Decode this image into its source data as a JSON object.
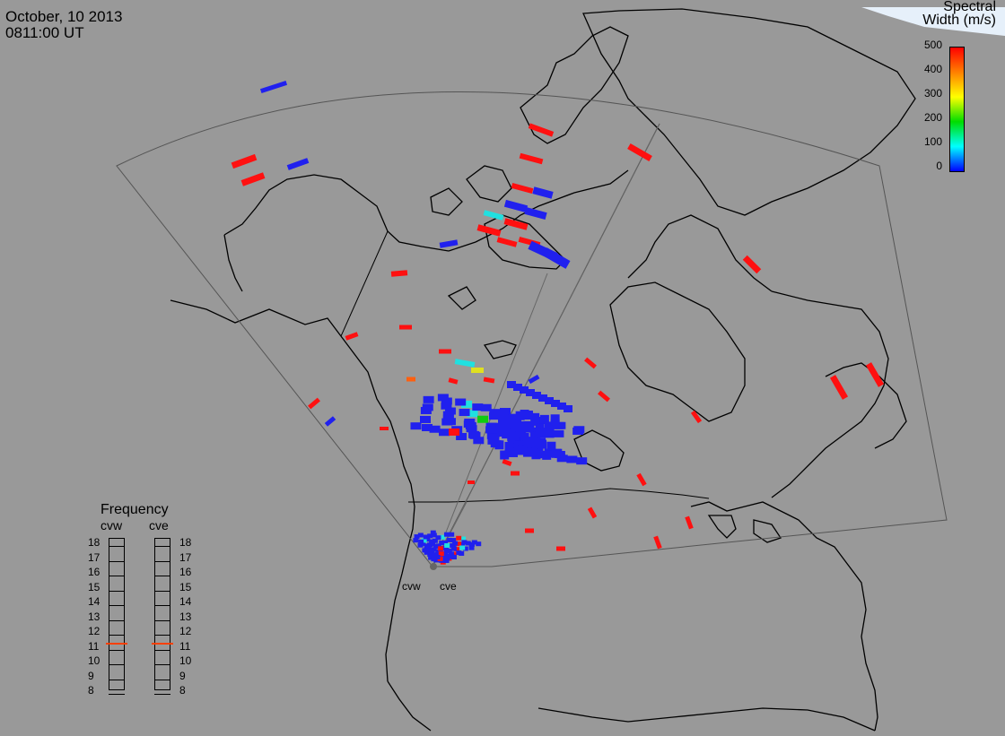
{
  "header": {
    "date": "October, 10 2013",
    "time": "0811:00 UT"
  },
  "colorbar": {
    "title_line1": "Spectral",
    "title_line2": "Width (m/s)",
    "ticks": [
      "500",
      "400",
      "300",
      "200",
      "100",
      "0"
    ],
    "colors": [
      "#ff0000",
      "#ff8000",
      "#ffff00",
      "#00dd00",
      "#00ffff",
      "#0000ff"
    ]
  },
  "frequency_panel": {
    "title": "Frequency",
    "radars": [
      {
        "name": "cvw",
        "value_mhz": 10.5
      },
      {
        "name": "cve",
        "value_mhz": 10.5
      }
    ],
    "scale_labels": [
      "18",
      "17",
      "16",
      "15",
      "14",
      "13",
      "12",
      "11",
      "10",
      "9",
      "8"
    ],
    "marker_color": "#ff4000"
  },
  "radar_sites": [
    {
      "name": "cvw"
    },
    {
      "name": "cve"
    }
  ],
  "colors": {
    "background": "#999999",
    "coastline": "#000000",
    "fov_outline": "#555555",
    "ice_sky": "#ddeeff"
  }
}
